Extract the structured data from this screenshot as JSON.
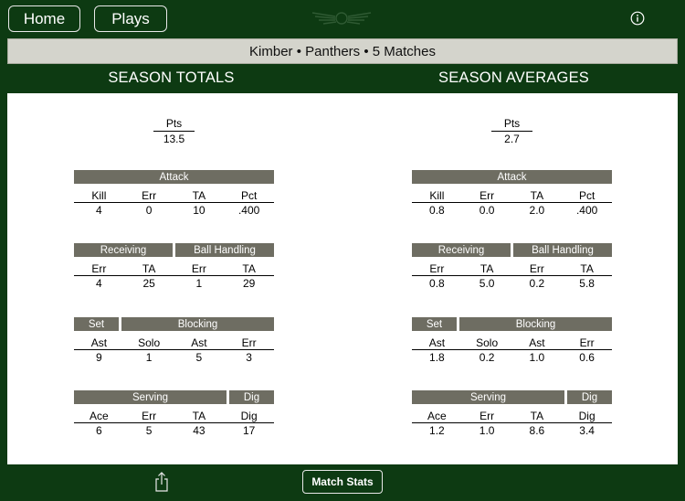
{
  "nav": {
    "home_label": "Home",
    "plays_label": "Plays"
  },
  "title": "Kimber • Panthers • 5 Matches",
  "totals": {
    "heading": "SEASON TOTALS",
    "pts": {
      "label": "Pts",
      "value": "13.5"
    },
    "attack": {
      "header": "Attack",
      "labels": [
        "Kill",
        "Err",
        "TA",
        "Pct"
      ],
      "values": [
        "4",
        "0",
        "10",
        ".400"
      ]
    },
    "recv_ball": {
      "headers": [
        "Receiving",
        "Ball Handling"
      ],
      "labels": [
        "Err",
        "TA",
        "Err",
        "TA"
      ],
      "values": [
        "4",
        "25",
        "1",
        "29"
      ]
    },
    "set_block": {
      "headers": [
        "Set",
        "Blocking"
      ],
      "labels": [
        "Ast",
        "Solo",
        "Ast",
        "Err"
      ],
      "values": [
        "9",
        "1",
        "5",
        "3"
      ]
    },
    "serve_dig": {
      "headers": [
        "Serving",
        "Dig"
      ],
      "labels": [
        "Ace",
        "Err",
        "TA",
        "Dig"
      ],
      "values": [
        "6",
        "5",
        "43",
        "17"
      ]
    }
  },
  "averages": {
    "heading": "SEASON AVERAGES",
    "pts": {
      "label": "Pts",
      "value": "2.7"
    },
    "attack": {
      "header": "Attack",
      "labels": [
        "Kill",
        "Err",
        "TA",
        "Pct"
      ],
      "values": [
        "0.8",
        "0.0",
        "2.0",
        ".400"
      ]
    },
    "recv_ball": {
      "headers": [
        "Receiving",
        "Ball Handling"
      ],
      "labels": [
        "Err",
        "TA",
        "Err",
        "TA"
      ],
      "values": [
        "0.8",
        "5.0",
        "0.2",
        "5.8"
      ]
    },
    "set_block": {
      "headers": [
        "Set",
        "Blocking"
      ],
      "labels": [
        "Ast",
        "Solo",
        "Ast",
        "Err"
      ],
      "values": [
        "1.8",
        "0.2",
        "1.0",
        "0.6"
      ]
    },
    "serve_dig": {
      "headers": [
        "Serving",
        "Dig"
      ],
      "labels": [
        "Ace",
        "Err",
        "TA",
        "Dig"
      ],
      "values": [
        "1.2",
        "1.0",
        "8.6",
        "3.4"
      ]
    }
  },
  "footer": {
    "match_stats_label": "Match Stats"
  },
  "icons": {
    "logo": "wings-emblem-icon",
    "info": "info-icon",
    "share": "share-icon"
  },
  "colors": {
    "background": "#0d3a12",
    "header_bar": "#6e6d62",
    "title_bar": "#d4d4cc"
  }
}
